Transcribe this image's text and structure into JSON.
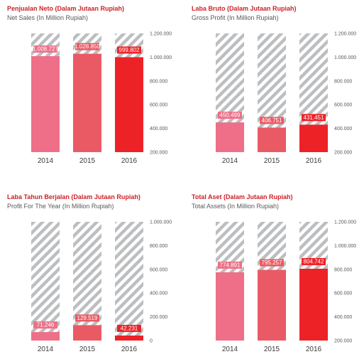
{
  "colors": {
    "y2014": "#ee6f87",
    "y2015": "#ea5a64",
    "y2016": "#ed2227",
    "hatch_line": "#bcbec0",
    "title_red": "#cc2229",
    "subtitle": "#58595b"
  },
  "chart_data": [
    {
      "type": "bar",
      "title": "Penjualan Neto (Dalam Jutaan Rupiah)",
      "subtitle": "Net Sales (In Million Rupiah)",
      "categories": [
        "2014",
        "2015",
        "2016"
      ],
      "values": [
        1008727,
        1028850,
        999802
      ],
      "value_labels": [
        "1.008.727",
        "1.028.850",
        "999.802"
      ],
      "ylim": [
        200000,
        1200000
      ],
      "yticks": [
        200000,
        400000,
        600000,
        800000,
        1000000,
        1200000
      ],
      "ytick_labels": [
        "200.000",
        "400.000",
        "600.000",
        "800.000",
        "1.000.000",
        "1.200.000"
      ]
    },
    {
      "type": "bar",
      "title": "Laba Bruto (Dalam Jutaan Rupiah)",
      "subtitle": "Gross Profit (In Million Rupiah)",
      "categories": [
        "2014",
        "2015",
        "2016"
      ],
      "values": [
        450499,
        406751,
        431451
      ],
      "value_labels": [
        "450.499",
        "406.751",
        "431.451"
      ],
      "ylim": [
        200000,
        1200000
      ],
      "yticks": [
        200000,
        400000,
        600000,
        800000,
        1000000,
        1200000
      ],
      "ytick_labels": [
        "200.000",
        "400.000",
        "600.000",
        "800.000",
        "1.000.000",
        "1.200.000"
      ]
    },
    {
      "type": "bar",
      "title": "Laba Tahun Berjalan (Dalam Jutaan Rupiah)",
      "subtitle": "Profit For The Year (In Million Rupiah)",
      "categories": [
        "2014",
        "2015",
        "2016"
      ],
      "values": [
        71246,
        129519,
        42231
      ],
      "value_labels": [
        "71.246",
        "129.519",
        "42.231"
      ],
      "ylim": [
        0,
        1000000
      ],
      "yticks": [
        0,
        200000,
        400000,
        600000,
        800000,
        1000000
      ],
      "ytick_labels": [
        "0",
        "200.000",
        "400.000",
        "600.000",
        "800.000",
        "1.000.000"
      ]
    },
    {
      "type": "bar",
      "title": "Total Aset (Dalam Jutaan Rupiah)",
      "subtitle": "Total Assets (In Million Rupiah)",
      "categories": [
        "2014",
        "2015",
        "2016"
      ],
      "values": [
        774891,
        795257,
        804742
      ],
      "value_labels": [
        "774.891",
        "795.257",
        "804.742"
      ],
      "ylim": [
        200000,
        1200000
      ],
      "yticks": [
        200000,
        400000,
        600000,
        800000,
        1000000,
        1200000
      ],
      "ytick_labels": [
        "200.000",
        "400.000",
        "600.000",
        "800.000",
        "1.000.000",
        "1.200.000"
      ]
    }
  ]
}
